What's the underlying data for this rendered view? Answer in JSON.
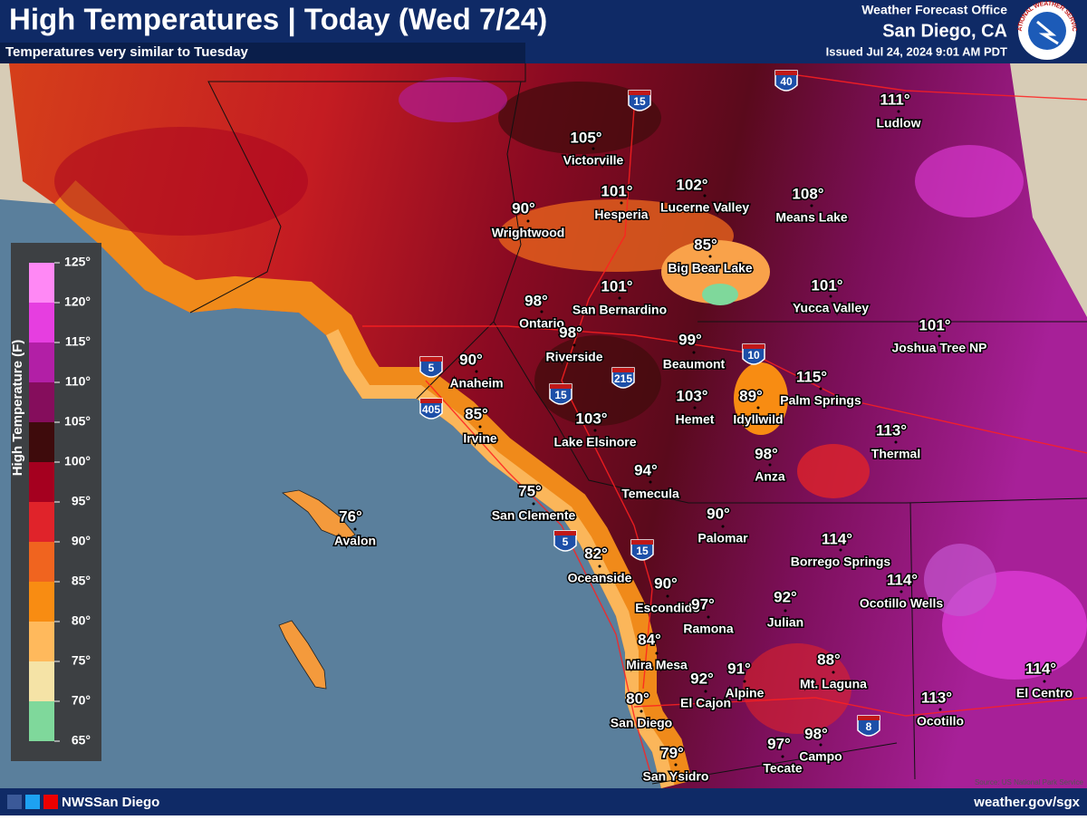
{
  "header": {
    "title": "High Temperatures | Today (Wed 7/24)",
    "subtitle": "Temperatures very similar to Tuesday",
    "office": "Weather Forecast Office",
    "location": "San Diego, CA",
    "issued": "Issued Jul 24, 2024 9:01 AM PDT",
    "logo_text": "NATIONAL WEATHER SERVICE"
  },
  "legend": {
    "title": "High Temperature (F)",
    "ticks": [
      {
        "value": 125,
        "label": "125°"
      },
      {
        "value": 120,
        "label": "120°"
      },
      {
        "value": 115,
        "label": "115°"
      },
      {
        "value": 110,
        "label": "110°"
      },
      {
        "value": 105,
        "label": "105°"
      },
      {
        "value": 100,
        "label": "100°"
      },
      {
        "value": 95,
        "label": "95°"
      },
      {
        "value": 90,
        "label": "90°"
      },
      {
        "value": 85,
        "label": "85°"
      },
      {
        "value": 80,
        "label": "80°"
      },
      {
        "value": 75,
        "label": "75°"
      },
      {
        "value": 70,
        "label": "70°"
      },
      {
        "value": 65,
        "label": "65°"
      }
    ],
    "colors": [
      "#ff88f5",
      "#e63ee0",
      "#b21fa6",
      "#850d5c",
      "#3e0b0c",
      "#a5001f",
      "#e0232a",
      "#f0641f",
      "#f88c12",
      "#ffb95c",
      "#f5e3a6",
      "#7fd89b"
    ]
  },
  "cities": [
    {
      "name": "Victorville",
      "temp": "105°"
    },
    {
      "name": "Hesperia",
      "temp": "101°"
    },
    {
      "name": "Lucerne Valley",
      "temp": "102°"
    },
    {
      "name": "Means Lake",
      "temp": "108°"
    },
    {
      "name": "Ludlow",
      "temp": "111°"
    },
    {
      "name": "Wrightwood",
      "temp": "90°"
    },
    {
      "name": "Big Bear Lake",
      "temp": "85°"
    },
    {
      "name": "Ontario",
      "temp": "98°"
    },
    {
      "name": "San Bernardino",
      "temp": "101°"
    },
    {
      "name": "Yucca Valley",
      "temp": "101°"
    },
    {
      "name": "Joshua Tree NP",
      "temp": "101°"
    },
    {
      "name": "Riverside",
      "temp": "98°"
    },
    {
      "name": "Beaumont",
      "temp": "99°"
    },
    {
      "name": "Anaheim",
      "temp": "90°"
    },
    {
      "name": "Hemet",
      "temp": "103°"
    },
    {
      "name": "Idyllwild",
      "temp": "89°"
    },
    {
      "name": "Palm Springs",
      "temp": "115°"
    },
    {
      "name": "Irvine",
      "temp": "85°"
    },
    {
      "name": "Lake Elsinore",
      "temp": "103°"
    },
    {
      "name": "Thermal",
      "temp": "113°"
    },
    {
      "name": "Anza",
      "temp": "98°"
    },
    {
      "name": "Temecula",
      "temp": "94°"
    },
    {
      "name": "San Clemente",
      "temp": "75°"
    },
    {
      "name": "Avalon",
      "temp": "76°"
    },
    {
      "name": "Palomar",
      "temp": "90°"
    },
    {
      "name": "Borrego Springs",
      "temp": "114°"
    },
    {
      "name": "Oceanside",
      "temp": "82°"
    },
    {
      "name": "Ocotillo Wells",
      "temp": "114°"
    },
    {
      "name": "Escondido",
      "temp": "90°"
    },
    {
      "name": "Ramona",
      "temp": "97°"
    },
    {
      "name": "Julian",
      "temp": "92°"
    },
    {
      "name": "Mira Mesa",
      "temp": "84°"
    },
    {
      "name": "Mt. Laguna",
      "temp": "88°"
    },
    {
      "name": "Alpine",
      "temp": "91°"
    },
    {
      "name": "El Cajon",
      "temp": "92°"
    },
    {
      "name": "El Centro",
      "temp": "114°"
    },
    {
      "name": "San Diego",
      "temp": "80°"
    },
    {
      "name": "Ocotillo",
      "temp": "113°"
    },
    {
      "name": "San Ysidro",
      "temp": "79°"
    },
    {
      "name": "Tecate",
      "temp": "97°"
    },
    {
      "name": "Campo",
      "temp": "98°"
    }
  ],
  "highways": [
    "15",
    "40",
    "5",
    "405",
    "15",
    "215",
    "10",
    "5",
    "15",
    "8"
  ],
  "footer": {
    "social": "NWSSan Diego",
    "url": "weather.gov/sgx",
    "source": "Source: US National Park Service"
  }
}
